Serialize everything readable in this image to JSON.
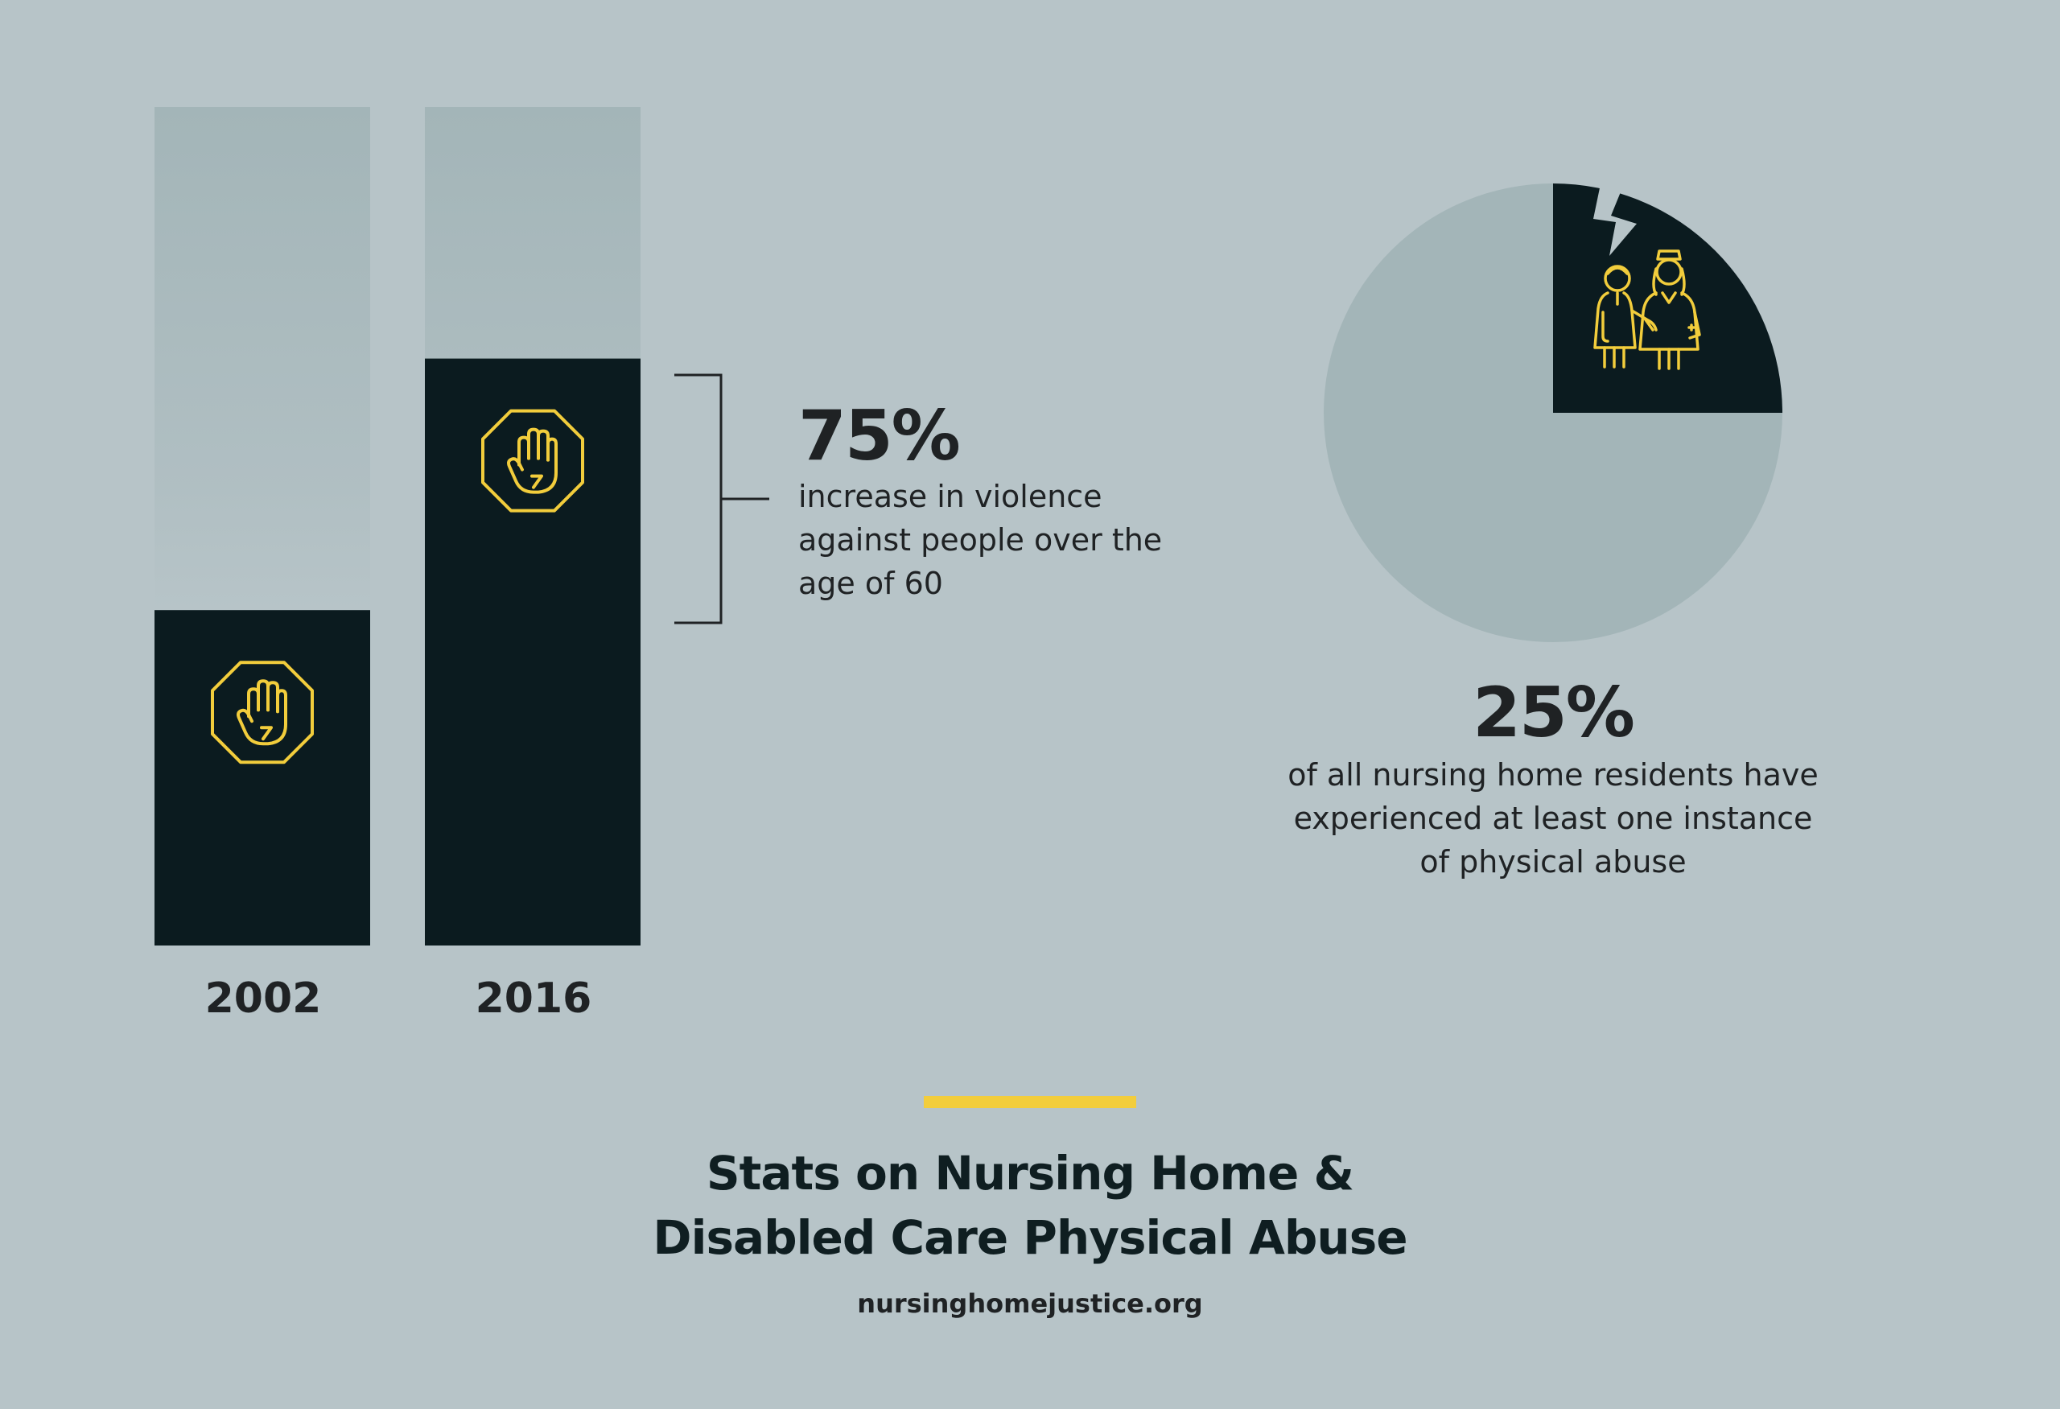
{
  "colors": {
    "background": "#b7c4c8",
    "dark": "#0b1b1f",
    "accent": "#f2cd3c",
    "faded": "#a3b5b8",
    "text": "#1f2224"
  },
  "chart_data": [
    {
      "type": "bar",
      "categories": [
        "2002",
        "2016"
      ],
      "values": [
        40,
        70
      ],
      "background_track": 100,
      "icon": "stop-hand-icon",
      "annotation": {
        "value": "75%",
        "text": "increase in violence against people over the age of 60"
      }
    },
    {
      "type": "pie",
      "slices": [
        {
          "value": 25,
          "color": "#0b1b1f",
          "icon": "caregiver-resident-icon",
          "exploded": true
        },
        {
          "value": 75,
          "color": "#a3b5b8"
        }
      ],
      "annotation": {
        "value": "25%",
        "text": "of all nursing home residents have experienced at least one instance of physical abuse"
      }
    }
  ],
  "footer": {
    "title_line1": "Stats on Nursing Home &",
    "title_line2": "Disabled Care Physical Abuse",
    "url": "nursinghomejustice.org"
  }
}
